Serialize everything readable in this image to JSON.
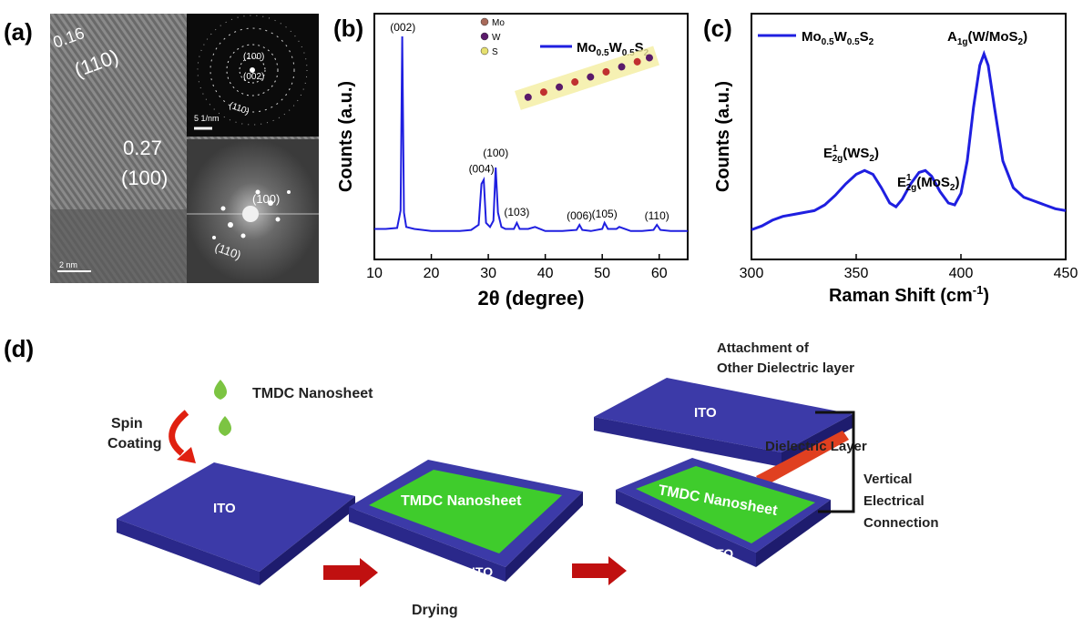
{
  "panel_labels": {
    "a": "(a)",
    "b": "(b)",
    "c": "(c)",
    "d": "(d)"
  },
  "panel_a": {
    "tem_spacing_1": "0.16",
    "tem_plane_1": "(110)",
    "tem_spacing_2": "0.27",
    "tem_plane_2": "(100)",
    "scale_bar_main": "2 nm",
    "saed_ring_100": "(100)",
    "saed_ring_002": "(002)",
    "saed_ring_110": "(110)",
    "saed_scale": "5 1/nm",
    "fft_spot_100": "(100)",
    "fft_spot_110": "(110)"
  },
  "chart_data": [
    {
      "type": "line",
      "xlabel": "2θ (degree)",
      "ylabel": "Counts (a.u.)",
      "xlim": [
        10,
        65
      ],
      "xticks": [
        "10",
        "20",
        "30",
        "40",
        "50",
        "60"
      ],
      "legend": "top-right",
      "series": [
        {
          "name": "Mo0.5W0.5S2",
          "color": "#1f1fe0",
          "x": [
            10,
            12,
            14,
            14.6,
            14.9,
            15.2,
            15.6,
            17,
            20,
            23,
            25,
            27,
            28.3,
            28.8,
            29.2,
            29.6,
            30.3,
            30.9,
            31.3,
            31.7,
            32.3,
            33,
            34.5,
            35,
            35.5,
            37,
            38.2,
            40,
            43,
            45.5,
            46,
            46.5,
            48,
            50,
            50.4,
            51,
            52.5,
            53,
            55,
            57,
            59,
            59.6,
            60.2,
            62,
            65
          ],
          "y": [
            6,
            6,
            6.5,
            15,
            100,
            14,
            7,
            6,
            5,
            5,
            5,
            5.5,
            8,
            28,
            30,
            9,
            7,
            10,
            36,
            14,
            7,
            6,
            6,
            9,
            6,
            6,
            7,
            5,
            5,
            5.5,
            8,
            5.5,
            5,
            6,
            9,
            6,
            6,
            7,
            5,
            5,
            5.5,
            8,
            5.5,
            5,
            5
          ]
        }
      ],
      "peak_labels": [
        "(002)",
        "(004)",
        "(100)",
        "(103)",
        "(006)",
        "(105)",
        "(110)"
      ],
      "inset_legend": [
        "Mo",
        "W",
        "S"
      ]
    },
    {
      "type": "line",
      "xlabel": "Raman Shift (cm⁻¹)",
      "ylabel": "Counts (a.u.)",
      "xlim": [
        300,
        450
      ],
      "xticks": [
        "300",
        "350",
        "400",
        "450"
      ],
      "legend": "top-left",
      "series": [
        {
          "name": "Mo0.5W0.5S2",
          "color": "#1f1fe0",
          "x": [
            300,
            305,
            310,
            315,
            320,
            325,
            330,
            335,
            340,
            345,
            350,
            354,
            358,
            362,
            366,
            369,
            372,
            376,
            380,
            383,
            386,
            390,
            394,
            397,
            400,
            403,
            406,
            409,
            411,
            413,
            416,
            420,
            425,
            430,
            435,
            440,
            445,
            450
          ],
          "y": [
            6,
            8,
            11,
            13,
            14,
            15,
            16,
            19,
            24,
            30,
            35,
            37,
            35,
            28,
            20,
            18,
            22,
            30,
            36,
            37,
            34,
            26,
            20,
            19,
            25,
            42,
            70,
            92,
            98,
            92,
            70,
            42,
            28,
            23,
            21,
            19,
            17,
            16
          ]
        }
      ],
      "annotations": [
        "A1g(W/MoS2)",
        "E12g(WS2)",
        "E12g(MoS2)"
      ]
    }
  ],
  "panel_d": {
    "tmdc_nanosheet_label": "TMDC Nanosheet",
    "spin_label": "Spin",
    "coating_label": "Coating",
    "ito_1": "ITO",
    "ito_2": "ITO",
    "tmdc_on_substrate": "TMDC Nanosheet",
    "drying_label": "Drying",
    "attachment_line1": "Attachment of",
    "attachment_line2": "Other Dielectric layer",
    "ito_top": "ITO",
    "dielectric_layer": "Dielectric Layer",
    "tmdc_bottom": "TMDC Nanosheet",
    "ito_bottom": "ITO",
    "vertical_line1": "Vertical",
    "vertical_line2": "Electrical",
    "vertical_line3": "Connection"
  }
}
